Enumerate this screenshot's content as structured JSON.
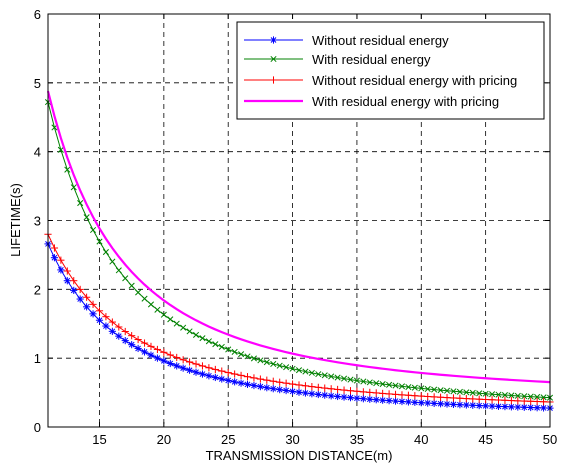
{
  "chart_data": {
    "type": "line",
    "title": "",
    "xlabel": "TRANSMISSION DISTANCE(m)",
    "ylabel": "LIFETIME(s)",
    "xlim": [
      11,
      50
    ],
    "ylim": [
      0,
      6
    ],
    "xticks": [
      15,
      20,
      25,
      30,
      35,
      40,
      45,
      50
    ],
    "yticks": [
      0,
      1,
      2,
      3,
      4,
      5,
      6
    ],
    "xtick_labels": [
      "15",
      "20",
      "25",
      "30",
      "35",
      "40",
      "45",
      "50"
    ],
    "ytick_labels": [
      "0",
      "1",
      "2",
      "3",
      "4",
      "5",
      "6"
    ],
    "grid": true,
    "grid_style": "dashed",
    "legend_position": "top-right",
    "x_sample_step": 0.5,
    "model": "y = a * (11/x)^b + c",
    "series": [
      {
        "name": "Without residual energy",
        "color": "#0000ff",
        "marker": "asterisk",
        "a": 2.54,
        "b": 1.85,
        "c": 0.12
      },
      {
        "name": "With residual energy",
        "color": "#008000",
        "marker": "x",
        "a": 4.55,
        "b": 1.9,
        "c": 0.17
      },
      {
        "name": "Without residual energy with pricing",
        "color": "#ff0000",
        "marker": "plus",
        "a": 2.61,
        "b": 1.79,
        "c": 0.19
      },
      {
        "name": "With residual energy with pricing",
        "color": "#ff00ff",
        "marker": "none",
        "a": 4.48,
        "b": 1.9,
        "c": 0.4
      }
    ],
    "sample_points": {
      "x": [
        11,
        15,
        20,
        25,
        30,
        35,
        40,
        45,
        50
      ],
      "Without residual energy": [
        2.66,
        1.46,
        0.88,
        0.61,
        0.44,
        0.33,
        0.25,
        0.2,
        0.15
      ],
      "With residual energy": [
        4.72,
        2.66,
        1.49,
        1.03,
        0.74,
        0.55,
        0.41,
        0.32,
        0.25
      ],
      "Without residual energy with pricing": [
        2.8,
        1.54,
        0.98,
        0.69,
        0.52,
        0.41,
        0.33,
        0.28,
        0.24
      ],
      "With residual energy with pricing": [
        4.88,
        2.83,
        1.7,
        1.18,
        0.89,
        0.72,
        0.6,
        0.51,
        0.45
      ]
    }
  }
}
